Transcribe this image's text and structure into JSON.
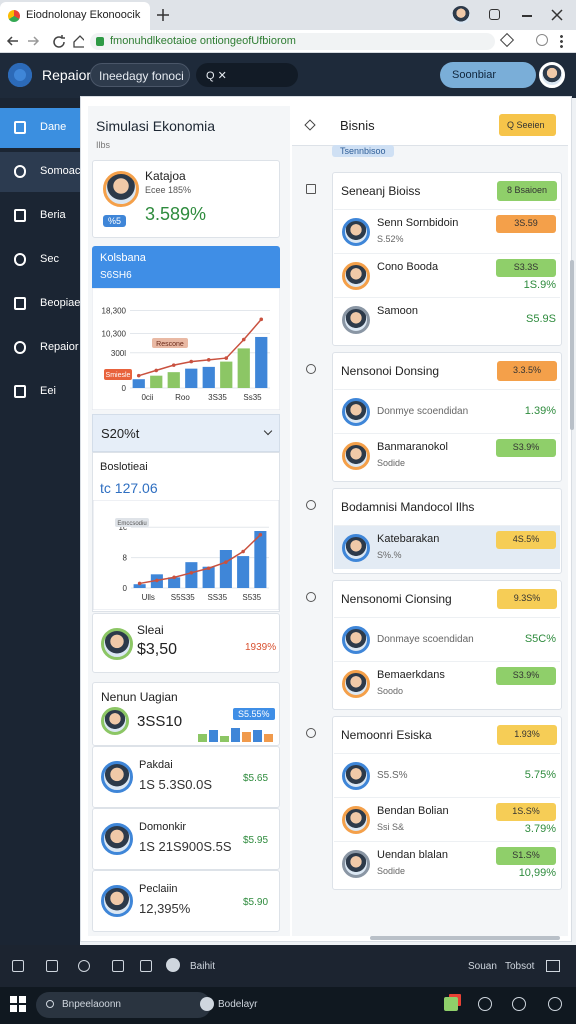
{
  "browser": {
    "tab_title": "Eiodnolonay Ekonoocik",
    "url": "fmonuhdlkeotaioe ontiongeofUfbiorom"
  },
  "header": {
    "app_name": "Repaior",
    "search": "Ineedagy fonoci",
    "filter": "Q ✕",
    "button": "Soonbiar"
  },
  "sidebar": [
    "Dane",
    "Somoac",
    "Beria",
    "Sec",
    "Beopiae",
    "Repaior",
    "Eei"
  ],
  "left": {
    "title": "Simulasi Ekonomia",
    "subtitle": "Ilbs",
    "summary": {
      "name": "Katajoa",
      "sub": "Ecee 185%",
      "tag": "%5",
      "value": "3.589%"
    },
    "chart1": {
      "header": "Kolsbana",
      "subheader": "S6SH6",
      "ylim": [
        0,
        100
      ],
      "yticks": [
        {
          "value": 0,
          "label": "0"
        },
        {
          "value": 40,
          "label": "300l"
        },
        {
          "value": 62,
          "label": "10,300"
        },
        {
          "value": 88,
          "label": "18,300"
        }
      ],
      "categories": [
        "0cii",
        "Roo",
        "3S35",
        "Ss35"
      ],
      "bars": [
        10,
        14,
        18,
        22,
        24,
        30,
        45,
        58
      ],
      "bar_colors": [
        "#3f86d8",
        "#8cc665",
        "#8cc665",
        "#3f86d8",
        "#3f86d8",
        "#8cc665",
        "#8cc665",
        "#3f86d8"
      ],
      "line": [
        14,
        20,
        26,
        30,
        32,
        34,
        55,
        78
      ],
      "line_color": "#c9513f",
      "annotations": [
        "Rescone",
        "Smiesle"
      ]
    },
    "dropdown": "S20%t",
    "balance": {
      "label": "Boslotieai",
      "value": "tc 127.06"
    },
    "chart2": {
      "ylim": [
        0,
        100
      ],
      "yticks": [
        {
          "value": 0,
          "label": "0"
        },
        {
          "value": 40,
          "label": "8"
        },
        {
          "value": 80,
          "label": "1c"
        }
      ],
      "categories": [
        "Ulls",
        "S5S35",
        "SS35",
        "S535"
      ],
      "bars": [
        5,
        18,
        14,
        34,
        28,
        50,
        42,
        75
      ],
      "bar_color": "#3f86d8",
      "line": [
        6,
        10,
        14,
        20,
        26,
        34,
        48,
        70
      ],
      "line_color": "#c9513f",
      "annotation": "Emccsodiu"
    },
    "stat": {
      "name": "Sleai",
      "value": "$3,50",
      "change": "1939%"
    },
    "mini": {
      "title": "Nenun Uagian",
      "value": "3SS10",
      "chip": "S5.55%",
      "bars": [
        8,
        12,
        6,
        14,
        10,
        12,
        8
      ],
      "bar_colors": [
        "#8cc665",
        "#3f86d8",
        "#8cc665",
        "#3f86d8",
        "#f09a4c",
        "#3f86d8",
        "#f09a4c"
      ]
    },
    "list": [
      {
        "name": "Pakdai",
        "sub": "1S 5.3S0.0S",
        "value": "$5.65"
      },
      {
        "name": "Domonkir",
        "sub": "1S 21S900S.5S",
        "value": "$5.95"
      },
      {
        "name": "Peclaiin",
        "sub": "12,395%",
        "value": "$5.90"
      }
    ]
  },
  "right": {
    "title": "Bisnis",
    "button": "Q Seeien",
    "tag": "Tsennbisoo",
    "sections": [
      {
        "title": "Seneanj Bioiss",
        "badge": "8 Bsaioen",
        "badge_color": "#8fcf6a",
        "items": [
          {
            "name": "Senn Sornbidoin",
            "sub": "S.52%",
            "badge": "3S.59",
            "badge_color": "#f4a04a"
          },
          {
            "name": "Cono Booda",
            "badge": "S3.3S",
            "badge_color": "#8fcf6a",
            "value": "1S.9%"
          },
          {
            "name": "Samoon",
            "value": "S5.9S"
          }
        ]
      },
      {
        "title": "Nensonoi Donsing",
        "badge": "3.3.5%",
        "badge_color": "#f4a04a",
        "items": [
          {
            "sub": "Donmye scoendidan",
            "value": "1.39%"
          },
          {
            "name": "Banmaranokol",
            "sub": "Sodide",
            "badge": "S3.9%",
            "badge_color": "#8fcf6a"
          }
        ]
      },
      {
        "title": "Bodamnisi Mandocol Ilhs",
        "items": [
          {
            "name": "Katebarakan",
            "sub": "S%.%",
            "badge": "4S.5%",
            "badge_color": "#f6cd56"
          }
        ]
      },
      {
        "title": "Nensonomi Cionsing",
        "badge": "9.3S%",
        "badge_color": "#f6cd56",
        "items": [
          {
            "sub": "Donmaye scoendidan",
            "value": "S5C%"
          },
          {
            "name": "Bemaerkdans",
            "sub": "Soodo",
            "badge": "S3.9%",
            "badge_color": "#8fcf6a"
          }
        ]
      },
      {
        "title": "Nemoonri Esiska",
        "badge": "1.93%",
        "badge_color": "#f6cd56",
        "items": [
          {
            "sub": "S5.S%",
            "value": "5.75%"
          },
          {
            "name": "Bendan Bolian",
            "sub": "Ssi S&",
            "badge": "1S.S%",
            "badge_color": "#f6cd56",
            "value": "3.79%"
          },
          {
            "name": "Uendan blalan",
            "sub": "Sodide",
            "badge": "S1.S%",
            "badge_color": "#8fcf6a",
            "value": "10,99%"
          }
        ]
      }
    ]
  },
  "taskbar": {
    "status": "Baihit",
    "right1": "Souan",
    "right2": "Tobsot",
    "search": "Bnpeelaoonn",
    "search2": "Bodelayr"
  }
}
